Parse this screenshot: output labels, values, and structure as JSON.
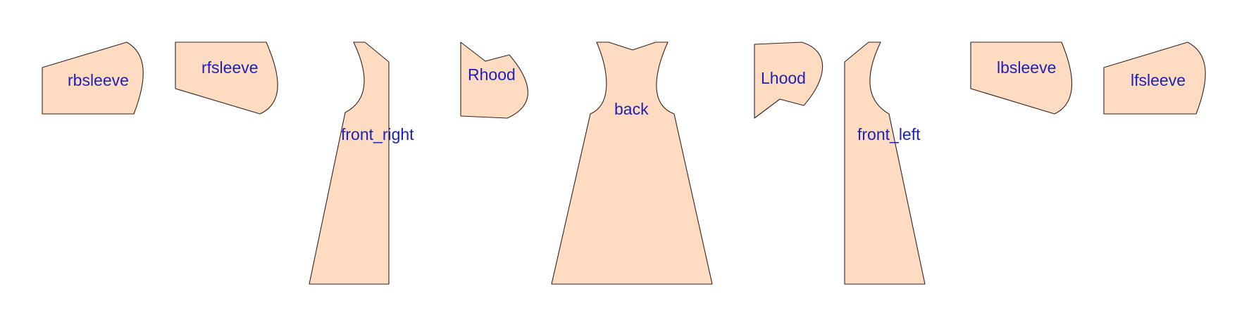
{
  "diagram": {
    "colors": {
      "piece_fill": "#ffdbc2",
      "piece_outline": "#2e2420",
      "label_color": "#1d22b6"
    },
    "pieces": [
      {
        "id": "rbsleeve",
        "label": "rbsleeve"
      },
      {
        "id": "rfsleeve",
        "label": "rfsleeve"
      },
      {
        "id": "front-right",
        "label": "front_right"
      },
      {
        "id": "rhood",
        "label": "Rhood"
      },
      {
        "id": "back",
        "label": "back"
      },
      {
        "id": "lhood",
        "label": "Lhood"
      },
      {
        "id": "front-left",
        "label": "front_left"
      },
      {
        "id": "lbsleeve",
        "label": "lbsleeve"
      },
      {
        "id": "lfsleeve",
        "label": "lfsleeve"
      }
    ]
  }
}
